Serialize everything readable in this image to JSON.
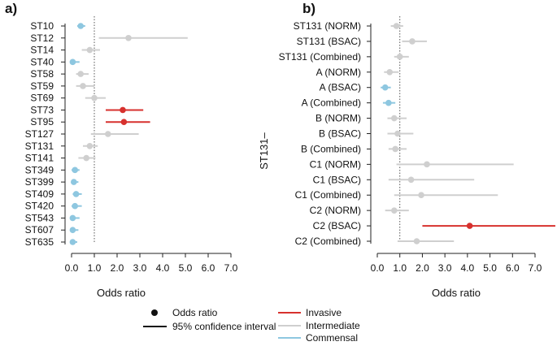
{
  "colors": {
    "invasive": "#d7312e",
    "intermediate": "#cfcfcf",
    "commensal": "#8ec7e0",
    "axis": "#222222",
    "refline": "#555555"
  },
  "legend": {
    "point_label": "Odds ratio",
    "line_label": "95% confidence interval",
    "invasive": "Invasive",
    "intermediate": "Intermediate",
    "commensal": "Commensal"
  },
  "chart_data": [
    {
      "type": "forest",
      "panel_label": "a)",
      "xlabel": "Odds ratio",
      "xlim": [
        0.0,
        7.0
      ],
      "xticks": [
        "0.0",
        "1.0",
        "2.0",
        "3.0",
        "4.0",
        "5.0",
        "6.0",
        "7.0"
      ],
      "reference_line": 1.0,
      "y_group_label": "",
      "rows": [
        {
          "label": "ST10",
          "or": 0.4,
          "lo": 0.25,
          "hi": 0.6,
          "cls": "commensal"
        },
        {
          "label": "ST12",
          "or": 2.5,
          "lo": 1.2,
          "hi": 5.1,
          "cls": "intermediate"
        },
        {
          "label": "ST14",
          "or": 0.8,
          "lo": 0.45,
          "hi": 1.25,
          "cls": "intermediate"
        },
        {
          "label": "ST40",
          "or": 0.05,
          "lo": 0.0,
          "hi": 0.35,
          "cls": "commensal"
        },
        {
          "label": "ST58",
          "or": 0.4,
          "lo": 0.2,
          "hi": 0.75,
          "cls": "intermediate"
        },
        {
          "label": "ST59",
          "or": 0.5,
          "lo": 0.2,
          "hi": 1.0,
          "cls": "intermediate"
        },
        {
          "label": "ST69",
          "or": 1.0,
          "lo": 0.6,
          "hi": 1.5,
          "cls": "intermediate"
        },
        {
          "label": "ST73",
          "or": 2.25,
          "lo": 1.5,
          "hi": 3.15,
          "cls": "invasive"
        },
        {
          "label": "ST95",
          "or": 2.3,
          "lo": 1.5,
          "hi": 3.45,
          "cls": "invasive"
        },
        {
          "label": "ST127",
          "or": 1.6,
          "lo": 0.85,
          "hi": 2.95,
          "cls": "intermediate"
        },
        {
          "label": "ST131",
          "or": 0.8,
          "lo": 0.5,
          "hi": 1.15,
          "cls": "intermediate"
        },
        {
          "label": "ST141",
          "or": 0.65,
          "lo": 0.3,
          "hi": 1.05,
          "cls": "intermediate"
        },
        {
          "label": "ST349",
          "or": 0.15,
          "lo": 0.0,
          "hi": 0.35,
          "cls": "commensal"
        },
        {
          "label": "ST399",
          "or": 0.1,
          "lo": 0.0,
          "hi": 0.3,
          "cls": "commensal"
        },
        {
          "label": "ST409",
          "or": 0.2,
          "lo": 0.05,
          "hi": 0.45,
          "cls": "commensal"
        },
        {
          "label": "ST420",
          "or": 0.15,
          "lo": 0.0,
          "hi": 0.45,
          "cls": "commensal"
        },
        {
          "label": "ST543",
          "or": 0.05,
          "lo": 0.0,
          "hi": 0.35,
          "cls": "commensal"
        },
        {
          "label": "ST607",
          "or": 0.05,
          "lo": 0.0,
          "hi": 0.3,
          "cls": "commensal"
        },
        {
          "label": "ST635",
          "or": 0.05,
          "lo": 0.0,
          "hi": 0.25,
          "cls": "commensal"
        }
      ]
    },
    {
      "type": "forest",
      "panel_label": "b)",
      "xlabel": "Odds ratio",
      "xlim": [
        0.0,
        7.0
      ],
      "xticks": [
        "0.0",
        "1.0",
        "2.0",
        "3.0",
        "4.0",
        "5.0",
        "6.0",
        "7.0"
      ],
      "reference_line": 1.0,
      "y_group_label": "ST131–",
      "rows": [
        {
          "label": "ST131 (NORM)",
          "or": 0.85,
          "lo": 0.6,
          "hi": 1.15,
          "cls": "intermediate"
        },
        {
          "label": "ST131 (BSAC)",
          "or": 1.55,
          "lo": 1.1,
          "hi": 2.2,
          "cls": "intermediate"
        },
        {
          "label": "ST131 (Combined)",
          "or": 1.0,
          "lo": 0.75,
          "hi": 1.4,
          "cls": "intermediate"
        },
        {
          "label": "A (NORM)",
          "or": 0.55,
          "lo": 0.3,
          "hi": 0.95,
          "cls": "intermediate"
        },
        {
          "label": "A (BSAC)",
          "or": 0.35,
          "lo": 0.15,
          "hi": 0.6,
          "cls": "commensal"
        },
        {
          "label": "A (Combined)",
          "or": 0.5,
          "lo": 0.25,
          "hi": 0.8,
          "cls": "commensal"
        },
        {
          "label": "B (NORM)",
          "or": 0.75,
          "lo": 0.45,
          "hi": 1.3,
          "cls": "intermediate"
        },
        {
          "label": "B (BSAC)",
          "or": 0.9,
          "lo": 0.45,
          "hi": 1.6,
          "cls": "intermediate"
        },
        {
          "label": "B (Combined)",
          "or": 0.8,
          "lo": 0.5,
          "hi": 1.3,
          "cls": "intermediate"
        },
        {
          "label": "C1 (NORM)",
          "or": 2.2,
          "lo": 0.85,
          "hi": 6.05,
          "cls": "intermediate"
        },
        {
          "label": "C1 (BSAC)",
          "or": 1.5,
          "lo": 0.5,
          "hi": 4.3,
          "cls": "intermediate"
        },
        {
          "label": "C1 (Combined)",
          "or": 1.95,
          "lo": 0.75,
          "hi": 5.35,
          "cls": "intermediate"
        },
        {
          "label": "C2 (NORM)",
          "or": 0.75,
          "lo": 0.35,
          "hi": 1.4,
          "cls": "intermediate"
        },
        {
          "label": "C2 (BSAC)",
          "or": 4.1,
          "lo": 2.0,
          "hi": 7.9,
          "cls": "invasive"
        },
        {
          "label": "C2 (Combined)",
          "or": 1.75,
          "lo": 0.9,
          "hi": 3.4,
          "cls": "intermediate"
        }
      ]
    }
  ]
}
